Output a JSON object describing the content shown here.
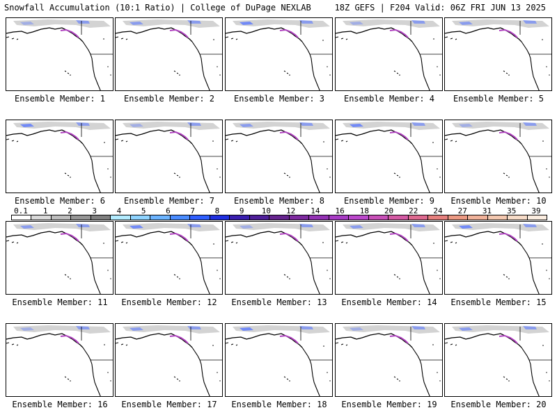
{
  "header": {
    "left": "Snowfall Accumulation (10:1 Ratio) | College of DuPage NEXLAB",
    "right": "18Z GEFS | F204 Valid: 06Z FRI JUN 13 2025"
  },
  "panels": [
    {
      "caption": "Ensemble Member: 1"
    },
    {
      "caption": "Ensemble Member: 2"
    },
    {
      "caption": "Ensemble Member: 3"
    },
    {
      "caption": "Ensemble Member: 4"
    },
    {
      "caption": "Ensemble Member: 5"
    },
    {
      "caption": "Ensemble Member: 6"
    },
    {
      "caption": "Ensemble Member: 7"
    },
    {
      "caption": "Ensemble Member: 8"
    },
    {
      "caption": "Ensemble Member: 9"
    },
    {
      "caption": "Ensemble Member: 10"
    },
    {
      "caption": "Ensemble Member: 11"
    },
    {
      "caption": "Ensemble Member: 12"
    },
    {
      "caption": "Ensemble Member: 13"
    },
    {
      "caption": "Ensemble Member: 14"
    },
    {
      "caption": "Ensemble Member: 15"
    },
    {
      "caption": "Ensemble Member: 16"
    },
    {
      "caption": "Ensemble Member: 17"
    },
    {
      "caption": "Ensemble Member: 18"
    },
    {
      "caption": "Ensemble Member: 19"
    },
    {
      "caption": "Ensemble Member: 20"
    }
  ],
  "colorbar": {
    "labels": [
      "0.1",
      "1",
      "2",
      "3",
      "4",
      "5",
      "6",
      "7",
      "8",
      "9",
      "10",
      "12",
      "14",
      "16",
      "18",
      "20",
      "22",
      "24",
      "27",
      "31",
      "35",
      "39"
    ],
    "colors": [
      "#ffffff",
      "#d9d9d9",
      "#bdbdbd",
      "#969696",
      "#7f7f7f",
      "#b3ecff",
      "#8fd4ff",
      "#6cb4ff",
      "#4a8cff",
      "#2f5fff",
      "#1f2fe0",
      "#3a1fb0",
      "#4f1f9a",
      "#66248f",
      "#7e2aa0",
      "#9432b5",
      "#a83cc5",
      "#bb48cc",
      "#c850b8",
      "#d45aa4",
      "#de6a90",
      "#e6807e",
      "#ec9a84",
      "#f0b29a",
      "#f4c8b0",
      "#f7dcc8",
      "#fbede0"
    ]
  },
  "colors": {
    "snow_gray": "#c8c8c8",
    "snow_blue": "#5a78ff",
    "snow_purple": "#b040c0",
    "coast": "#000000"
  }
}
